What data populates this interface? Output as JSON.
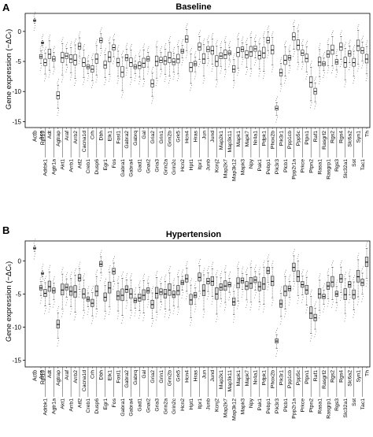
{
  "chart_data": [
    {
      "type": "boxplot",
      "panel_label": "A",
      "title": "Baseline",
      "ylabel": "Gene expression (−ΔCₜ)",
      "ylim": [
        -16,
        3
      ],
      "yticks": [
        0,
        -5,
        -10,
        -15
      ],
      "grid": false,
      "reference_genes": [
        "Actb",
        "Rpl19"
      ],
      "reference_medians": [
        1.8,
        -1.9
      ],
      "genes": [
        "Ace",
        "Adrbk1",
        "Adt",
        "Agtr1a",
        "Agtrap",
        "Akt1",
        "Araf",
        "Arrb1",
        "Arrb2",
        "Atf2",
        "Cacna1d",
        "Creb1",
        "Crh",
        "Dusp6",
        "Dbh",
        "Egr1",
        "Elk1",
        "Fos",
        "Fosl1",
        "Gabra1",
        "Gabra2",
        "Gabra4",
        "Gabrq",
        "Gad1",
        "Gal",
        "Gnai2",
        "Gria2",
        "Gria3",
        "Grin1",
        "Grin2a",
        "Grin2b",
        "Grin2c",
        "Grk5",
        "Hcn2",
        "Hcn4",
        "Hpt1",
        "Hras",
        "Itpr1",
        "Jun",
        "Junb",
        "Jund",
        "Kcnj2",
        "Map2k1",
        "Map2k7",
        "Map3k11",
        "Map3k12",
        "Mapk1",
        "Mapk3",
        "Mapk7",
        "Npy",
        "Nr4a1",
        "Pak1",
        "Pdpk1",
        "Pebp1",
        "Phox2b",
        "Pik3r3",
        "Pik3r1",
        "Plcb1",
        "Ppp1cb",
        "Ppp2r1a",
        "Ppp5c",
        "Prkce",
        "Ptpn1",
        "Ptpn2",
        "Raf1",
        "Rasa1",
        "Rasgrf2",
        "Rasgrp1",
        "Rgs2",
        "Rgs3",
        "Rgs4",
        "Slc32a1",
        "Slc6a2",
        "Sst",
        "Syn1",
        "Tac1",
        "Th"
      ],
      "medians": [
        -4.2,
        -5.2,
        -3.8,
        -4.6,
        -10.7,
        -4.4,
        -4.1,
        -4.6,
        -4.8,
        -2.5,
        -5.2,
        -5.9,
        -6.3,
        -4.6,
        -1.5,
        -5.6,
        -4.3,
        -2.7,
        -5.2,
        -6.8,
        -4.4,
        -5.2,
        -5.9,
        -5.7,
        -5.3,
        -4.6,
        -8.7,
        -5.0,
        -4.8,
        -4.9,
        -4.4,
        -5.1,
        -4.6,
        -3.3,
        -1.3,
        -6.0,
        -5.4,
        -2.6,
        -4.6,
        -3.0,
        -3.2,
        -5.0,
        -4.1,
        -3.9,
        -3.6,
        -6.3,
        -3.5,
        -3.0,
        -3.9,
        -3.4,
        -2.9,
        -4.0,
        -3.6,
        -1.5,
        -3.1,
        -12.8,
        -6.9,
        -4.8,
        -4.4,
        -0.9,
        -2.3,
        -3.6,
        -4.5,
        -8.5,
        -10.0,
        -5.1,
        -5.4,
        -3.8,
        -3.1,
        -5.1,
        -2.6,
        -5.2,
        -3.7,
        -5.2,
        -2.4,
        -3.2,
        -4.6
      ]
    },
    {
      "type": "boxplot",
      "panel_label": "B",
      "title": "Hypertension",
      "ylabel": "Gene expression (−ΔCₜ)",
      "ylim": [
        -16,
        3
      ],
      "yticks": [
        0,
        -5,
        -10,
        -15
      ],
      "grid": false,
      "reference_genes": [
        "Actb",
        "Rpl19"
      ],
      "reference_medians": [
        1.9,
        -1.9
      ],
      "genes": [
        "Ace",
        "Adrbk1",
        "Adt",
        "Agtr1a",
        "Agtrap",
        "Akt1",
        "Araf",
        "Arrb1",
        "Arrb2",
        "Atf2",
        "Cacna1d",
        "Creb1",
        "Crh",
        "Dusp6",
        "Dbh",
        "Egr1",
        "Elk1",
        "Fos",
        "Fosl1",
        "Gabra1",
        "Gabra2",
        "Gabra4",
        "Gabrq",
        "Gad1",
        "Gal",
        "Gnai2",
        "Gria2",
        "Gria3",
        "Grin1",
        "Grin2a",
        "Grin2b",
        "Grin2c",
        "Grk5",
        "Hcn2",
        "Hcn4",
        "Hpt1",
        "Hras",
        "Itpr1",
        "Jun",
        "Junb",
        "Jund",
        "Kcnj2",
        "Map2k1",
        "Map2k7",
        "Map3k11",
        "Map3k12",
        "Mapk1",
        "Mapk3",
        "Mapk7",
        "Npy",
        "Nr4a1",
        "Pak1",
        "Pdpk1",
        "Pebp1",
        "Phox2b",
        "Pik3r3",
        "Pik3r1",
        "Plcb1",
        "Ppp1cb",
        "Ppp2r1a",
        "Ppp5c",
        "Prkce",
        "Ptpn1",
        "Ptpn2",
        "Raf1",
        "Rasa1",
        "Rasgrf2",
        "Rasgrp1",
        "Rgs2",
        "Rgs3",
        "Rgs4",
        "Slc32a1",
        "Slc6a2",
        "Sst",
        "Syn1",
        "Tac1",
        "Th"
      ],
      "medians": [
        -4.1,
        -4.9,
        -3.9,
        -4.5,
        -9.6,
        -4.4,
        -4.0,
        -4.6,
        -4.7,
        -2.6,
        -5.0,
        -5.8,
        -6.4,
        -4.6,
        -0.5,
        -5.5,
        -4.1,
        -1.6,
        -5.3,
        -5.2,
        -4.3,
        -5.0,
        -6.0,
        -5.6,
        -5.2,
        -4.5,
        -6.6,
        -4.9,
        -4.7,
        -5.0,
        -4.4,
        -5.1,
        -4.5,
        -3.3,
        -2.7,
        -5.9,
        -5.2,
        -2.5,
        -4.5,
        -3.1,
        -3.1,
        -5.0,
        -4.0,
        -3.8,
        -3.6,
        -6.2,
        -3.4,
        -3.0,
        -3.8,
        -3.4,
        -2.9,
        -3.9,
        -3.5,
        -1.5,
        -3.1,
        -12.1,
        -6.5,
        -4.6,
        -4.2,
        -1.0,
        -2.4,
        -3.6,
        -4.4,
        -7.9,
        -8.6,
        -5.0,
        -5.4,
        -3.8,
        -3.2,
        -5.0,
        -2.7,
        -5.1,
        -3.6,
        -5.1,
        -2.4,
        -3.3,
        -0.2
      ]
    }
  ]
}
